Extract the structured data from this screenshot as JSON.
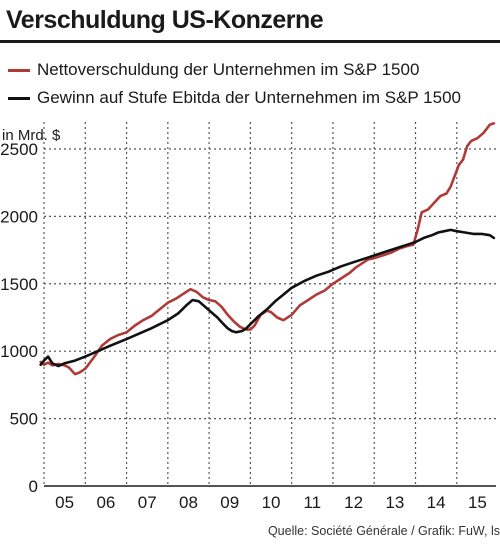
{
  "title": "Verschuldung US-Konzerne",
  "source": "Quelle: Société Générale / Grafik: FuW, ls",
  "chart_data": {
    "type": "line",
    "title": "Verschuldung US-Konzerne",
    "ylabel": "in Mrd. $",
    "xlabel": "",
    "xlim": [
      2005,
      2015.95
    ],
    "ylim": [
      0,
      2700
    ],
    "yticks": [
      0,
      500,
      1000,
      1500,
      2000,
      2500
    ],
    "xtick_labels": [
      "05",
      "06",
      "07",
      "08",
      "09",
      "10",
      "11",
      "12",
      "13",
      "14",
      "15"
    ],
    "grid": true,
    "legend_position": "top-left",
    "series": [
      {
        "name": "Nettoverschuldung der Unternehmen im S&P 1500",
        "color": "#b03a38",
        "x": [
          2004.92,
          2005.0,
          2005.1,
          2005.2,
          2005.35,
          2005.5,
          2005.6,
          2005.75,
          2005.85,
          2006.0,
          2006.2,
          2006.4,
          2006.6,
          2006.8,
          2007.0,
          2007.2,
          2007.4,
          2007.6,
          2007.8,
          2008.0,
          2008.2,
          2008.4,
          2008.55,
          2008.7,
          2008.85,
          2009.0,
          2009.15,
          2009.3,
          2009.45,
          2009.6,
          2009.75,
          2009.9,
          2010.0,
          2010.1,
          2010.25,
          2010.4,
          2010.5,
          2010.65,
          2010.8,
          2011.0,
          2011.2,
          2011.4,
          2011.6,
          2011.8,
          2012.0,
          2012.2,
          2012.4,
          2012.55,
          2012.7,
          2012.85,
          2013.0,
          2013.2,
          2013.4,
          2013.6,
          2013.8,
          2013.95,
          2014.05,
          2014.15,
          2014.3,
          2014.45,
          2014.6,
          2014.75,
          2014.85,
          2014.95,
          2015.05,
          2015.15,
          2015.25,
          2015.35,
          2015.5,
          2015.65,
          2015.8,
          2015.9
        ],
        "values": [
          920,
          900,
          915,
          895,
          905,
          895,
          880,
          830,
          840,
          870,
          950,
          1040,
          1090,
          1120,
          1140,
          1190,
          1230,
          1260,
          1310,
          1360,
          1390,
          1430,
          1460,
          1440,
          1400,
          1380,
          1370,
          1330,
          1270,
          1220,
          1180,
          1160,
          1160,
          1190,
          1270,
          1300,
          1290,
          1250,
          1230,
          1270,
          1340,
          1380,
          1420,
          1450,
          1500,
          1540,
          1580,
          1620,
          1650,
          1680,
          1690,
          1710,
          1730,
          1760,
          1780,
          1790,
          1900,
          2030,
          2050,
          2100,
          2150,
          2170,
          2220,
          2300,
          2380,
          2420,
          2520,
          2560,
          2580,
          2620,
          2680,
          2690
        ]
      },
      {
        "name": "Gewinn auf Stufe Ebitda der Unternehmen im S&P 1500",
        "color": "#111111",
        "x": [
          2004.92,
          2005.0,
          2005.1,
          2005.2,
          2005.35,
          2005.5,
          2005.75,
          2006.0,
          2006.3,
          2006.6,
          2007.0,
          2007.3,
          2007.6,
          2008.0,
          2008.25,
          2008.45,
          2008.6,
          2008.75,
          2008.9,
          2009.05,
          2009.2,
          2009.35,
          2009.45,
          2009.55,
          2009.65,
          2009.8,
          2009.9,
          2010.0,
          2010.2,
          2010.4,
          2010.6,
          2010.8,
          2011.0,
          2011.3,
          2011.6,
          2011.9,
          2012.2,
          2012.5,
          2012.8,
          2013.0,
          2013.3,
          2013.6,
          2013.8,
          2014.0,
          2014.2,
          2014.4,
          2014.55,
          2014.7,
          2014.85,
          2015.0,
          2015.2,
          2015.4,
          2015.6,
          2015.8,
          2015.9
        ],
        "values": [
          900,
          930,
          960,
          910,
          890,
          910,
          930,
          960,
          1000,
          1040,
          1090,
          1130,
          1170,
          1230,
          1280,
          1340,
          1380,
          1370,
          1330,
          1290,
          1250,
          1200,
          1170,
          1150,
          1140,
          1150,
          1170,
          1200,
          1260,
          1310,
          1370,
          1420,
          1470,
          1520,
          1560,
          1590,
          1630,
          1660,
          1690,
          1710,
          1740,
          1770,
          1790,
          1810,
          1840,
          1860,
          1880,
          1890,
          1900,
          1890,
          1880,
          1870,
          1870,
          1860,
          1840
        ]
      }
    ]
  }
}
